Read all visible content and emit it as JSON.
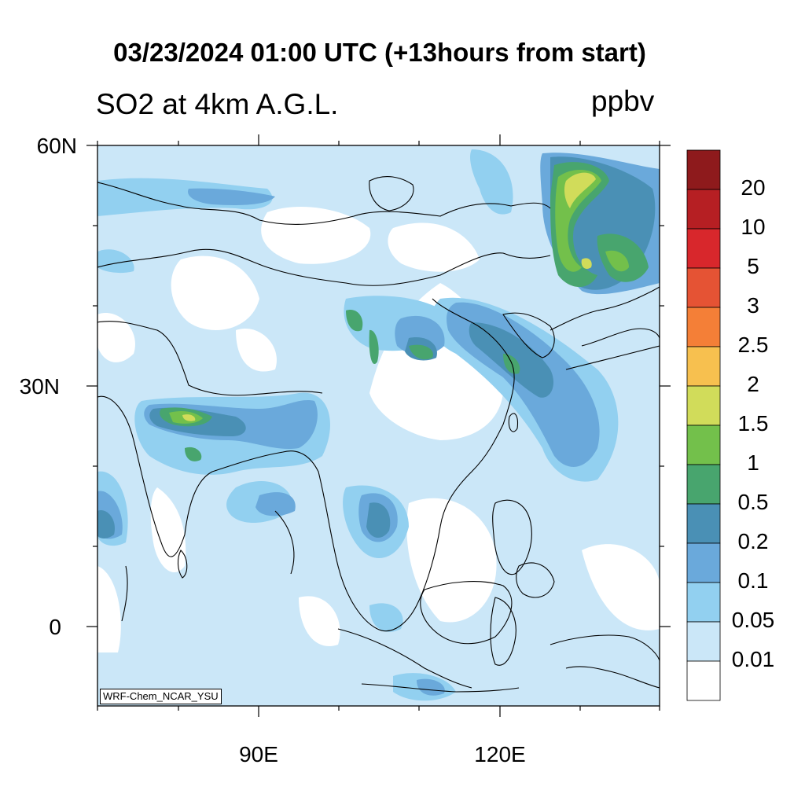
{
  "title": "03/23/2024 01:00 UTC (+13hours from start)",
  "subtitle": "SO2 at 4km A.G.L.",
  "units": "ppbv",
  "credit": "WRF-Chem_NCAR_YSU",
  "lat_labels": [
    "60N",
    "30N",
    "0"
  ],
  "lon_labels": [
    "90E",
    "120E"
  ],
  "colorbar": {
    "labels": [
      "20",
      "10",
      "5",
      "3",
      "2.5",
      "2",
      "1.5",
      "1",
      "0.5",
      "0.2",
      "0.1",
      "0.05",
      "0.01"
    ],
    "colors": [
      "#8e1a1c",
      "#b61f23",
      "#d8272c",
      "#e55334",
      "#f47f37",
      "#f7c04f",
      "#d1dc5a",
      "#73c04b",
      "#48a56e",
      "#4a90b5",
      "#6aa9db",
      "#92d0f0",
      "#cbe7f8",
      "#ffffff"
    ]
  }
}
